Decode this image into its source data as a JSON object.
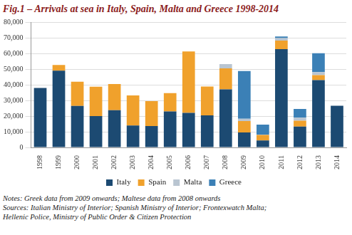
{
  "chart_data": {
    "type": "bar",
    "title": "Fig.1 – Arrivals at sea in Italy, Spain, Malta and Greece 1998-2014",
    "categories": [
      "1998",
      "1999",
      "2000",
      "2001",
      "2002",
      "2003",
      "2004",
      "2005",
      "2006",
      "2007",
      "2008",
      "2009",
      "2010",
      "2011",
      "2012",
      "2013",
      "2014"
    ],
    "series": [
      {
        "name": "Italy",
        "color": "#1c4a72",
        "values": [
          38000,
          49000,
          26500,
          20000,
          23700,
          14000,
          13600,
          22900,
          22000,
          20500,
          37000,
          9500,
          4400,
          62700,
          13300,
          42900,
          26600
        ]
      },
      {
        "name": "Spain",
        "color": "#f0a12c",
        "values": [
          null,
          3600,
          15400,
          18800,
          16700,
          19200,
          16000,
          11800,
          39200,
          18400,
          13400,
          7300,
          3600,
          5500,
          3800,
          3200,
          null
        ]
      },
      {
        "name": "Malta",
        "color": "#b9c5d1",
        "values": [
          null,
          null,
          null,
          null,
          null,
          null,
          null,
          null,
          null,
          null,
          2800,
          1500,
          100,
          1600,
          1900,
          2000,
          null
        ]
      },
      {
        "name": "Greece",
        "color": "#3b80b6",
        "values": [
          null,
          null,
          null,
          null,
          null,
          null,
          null,
          null,
          null,
          null,
          null,
          30500,
          6500,
          1000,
          5500,
          12000,
          null
        ]
      }
    ],
    "stacked": true,
    "ylim": [
      0,
      80000
    ],
    "yticks": [
      0,
      {
        "value": 10000,
        "label": "10,000"
      },
      {
        "value": 20000,
        "label": "20,000"
      },
      {
        "value": 30000,
        "label": "30,000"
      },
      {
        "value": 40000,
        "label": "40,000"
      },
      {
        "value": 50000,
        "label": "50,000"
      },
      {
        "value": 60000,
        "label": "60,000"
      },
      {
        "value": 70000,
        "label": "70,000"
      },
      {
        "value": 80000,
        "label": "80,000"
      }
    ],
    "grid": true,
    "legend": "bottom",
    "notes": [
      "Notes: Greek data from 2009 onwards; Maltese data from 2008 onwards"
    ],
    "sources": [
      "Sources: Italian Ministry of Interior; Spanish Ministry of Interior; Frontexwatch Malta;",
      "Hellenic Police, Ministry of Public Order & Citizen Protection"
    ]
  }
}
